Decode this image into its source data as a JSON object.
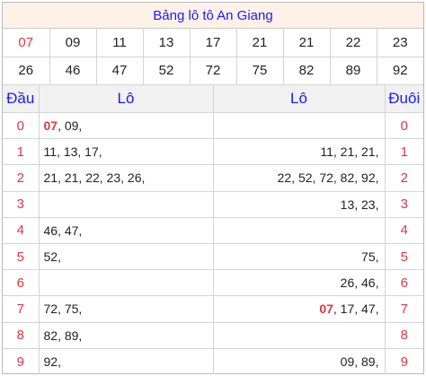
{
  "title": "Bảng lô tô An Giang",
  "numbers_row1": [
    {
      "v": "07",
      "hi": true
    },
    {
      "v": "09"
    },
    {
      "v": "11"
    },
    {
      "v": "13"
    },
    {
      "v": "17"
    },
    {
      "v": "21"
    },
    {
      "v": "21"
    },
    {
      "v": "22"
    },
    {
      "v": "23"
    }
  ],
  "numbers_row2": [
    {
      "v": "26"
    },
    {
      "v": "46"
    },
    {
      "v": "47"
    },
    {
      "v": "52"
    },
    {
      "v": "72"
    },
    {
      "v": "75"
    },
    {
      "v": "82"
    },
    {
      "v": "89"
    },
    {
      "v": "92"
    }
  ],
  "headers": {
    "dau": "Đầu",
    "lo_left": "Lô",
    "lo_right": "Lô",
    "duoi": "Đuôi"
  },
  "rows": [
    {
      "dau": "0",
      "left_special": "07",
      "left": ", 09,",
      "right_special": "",
      "right": "",
      "duoi": "0"
    },
    {
      "dau": "1",
      "left_special": "",
      "left": "11, 13, 17,",
      "right_special": "",
      "right": "11, 21, 21,",
      "duoi": "1"
    },
    {
      "dau": "2",
      "left_special": "",
      "left": "21, 21, 22, 23, 26,",
      "right_special": "",
      "right": "22, 52, 72, 82, 92,",
      "duoi": "2"
    },
    {
      "dau": "3",
      "left_special": "",
      "left": "",
      "right_special": "",
      "right": "13, 23,",
      "duoi": "3"
    },
    {
      "dau": "4",
      "left_special": "",
      "left": "46, 47,",
      "right_special": "",
      "right": "",
      "duoi": "4"
    },
    {
      "dau": "5",
      "left_special": "",
      "left": "52,",
      "right_special": "",
      "right": "75,",
      "duoi": "5"
    },
    {
      "dau": "6",
      "left_special": "",
      "left": "",
      "right_special": "",
      "right": "26, 46,",
      "duoi": "6"
    },
    {
      "dau": "7",
      "left_special": "",
      "left": "72, 75,",
      "right_special": "07",
      "right": ", 17, 47,",
      "duoi": "7"
    },
    {
      "dau": "8",
      "left_special": "",
      "left": "82, 89,",
      "right_special": "",
      "right": "",
      "duoi": "8"
    },
    {
      "dau": "9",
      "left_special": "",
      "left": "92,",
      "right_special": "",
      "right": "09, 89,",
      "duoi": "9"
    }
  ]
}
